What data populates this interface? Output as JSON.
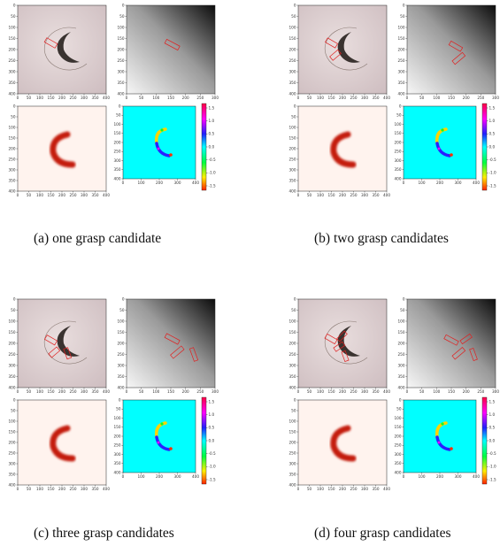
{
  "figure": {
    "panels": [
      {
        "id": "a",
        "caption": "(a) one grasp candidate",
        "rgb_boxes": [
          {
            "x": 150,
            "y": 170,
            "w": 55,
            "h": 22,
            "angle": 30
          }
        ],
        "depth_boxes": [
          {
            "x": 155,
            "y": 178,
            "w": 50,
            "h": 20,
            "angle": 28
          }
        ]
      },
      {
        "id": "b",
        "caption": "(b) two grasp candidates",
        "rgb_boxes": [
          {
            "x": 150,
            "y": 170,
            "w": 52,
            "h": 22,
            "angle": 30
          },
          {
            "x": 168,
            "y": 225,
            "w": 48,
            "h": 22,
            "angle": -40
          }
        ],
        "depth_boxes": [
          {
            "x": 165,
            "y": 185,
            "w": 45,
            "h": 20,
            "angle": 30
          },
          {
            "x": 175,
            "y": 240,
            "w": 45,
            "h": 20,
            "angle": -40
          }
        ]
      },
      {
        "id": "c",
        "caption": "(c) three grasp candidates",
        "rgb_boxes": [
          {
            "x": 150,
            "y": 185,
            "w": 52,
            "h": 22,
            "angle": 30
          },
          {
            "x": 165,
            "y": 240,
            "w": 48,
            "h": 22,
            "angle": -40
          },
          {
            "x": 225,
            "y": 245,
            "w": 48,
            "h": 20,
            "angle": 70
          }
        ],
        "depth_boxes": [
          {
            "x": 155,
            "y": 180,
            "w": 50,
            "h": 20,
            "angle": 28
          },
          {
            "x": 172,
            "y": 240,
            "w": 48,
            "h": 20,
            "angle": -40
          },
          {
            "x": 228,
            "y": 250,
            "w": 45,
            "h": 18,
            "angle": 70
          }
        ]
      },
      {
        "id": "d",
        "caption": "(d) four grasp candidates",
        "rgb_boxes": [
          {
            "x": 148,
            "y": 180,
            "w": 52,
            "h": 22,
            "angle": 30
          },
          {
            "x": 185,
            "y": 215,
            "w": 48,
            "h": 20,
            "angle": -35
          },
          {
            "x": 198,
            "y": 168,
            "w": 48,
            "h": 18,
            "angle": -45
          },
          {
            "x": 212,
            "y": 258,
            "w": 45,
            "h": 18,
            "angle": 70
          }
        ],
        "depth_boxes": [
          {
            "x": 150,
            "y": 185,
            "w": 48,
            "h": 20,
            "angle": 28
          },
          {
            "x": 200,
            "y": 180,
            "w": 40,
            "h": 18,
            "angle": -35
          },
          {
            "x": 175,
            "y": 245,
            "w": 45,
            "h": 20,
            "angle": -40
          },
          {
            "x": 225,
            "y": 250,
            "w": 40,
            "h": 18,
            "angle": 70
          }
        ]
      }
    ],
    "axes": {
      "rgb_xticks": [
        "0",
        "50",
        "100",
        "150",
        "200",
        "250",
        "300",
        "350",
        "400"
      ],
      "rgb_yticks": [
        "0",
        "50",
        "100",
        "150",
        "200",
        "250",
        "300",
        "350",
        "400"
      ],
      "depth_xticks": [
        "0",
        "50",
        "100",
        "150",
        "200",
        "250",
        "300"
      ],
      "depth_yticks": [
        "0",
        "50",
        "100",
        "150",
        "200",
        "250",
        "300",
        "350",
        "400"
      ],
      "quality_xticks": [
        "0",
        "50",
        "100",
        "150",
        "200",
        "250",
        "300",
        "350",
        "400"
      ],
      "quality_yticks": [
        "0",
        "50",
        "100",
        "150",
        "200",
        "250",
        "300",
        "350",
        "400"
      ],
      "angle_xticks": [
        "0",
        "100",
        "200",
        "300",
        "400"
      ],
      "angle_yticks": [
        "0",
        "50",
        "100",
        "150",
        "200",
        "250",
        "300",
        "350",
        "400"
      ],
      "colorbar_ticks": [
        "1.5",
        "1.0",
        "0.5",
        "0.0",
        "-0.5",
        "-1.0",
        "-1.5"
      ]
    },
    "colors": {
      "box": "#e02020",
      "quality_bg": "#fff3ee",
      "quality_blob": "#c41a10",
      "angle_bg": "#00ffff"
    }
  }
}
